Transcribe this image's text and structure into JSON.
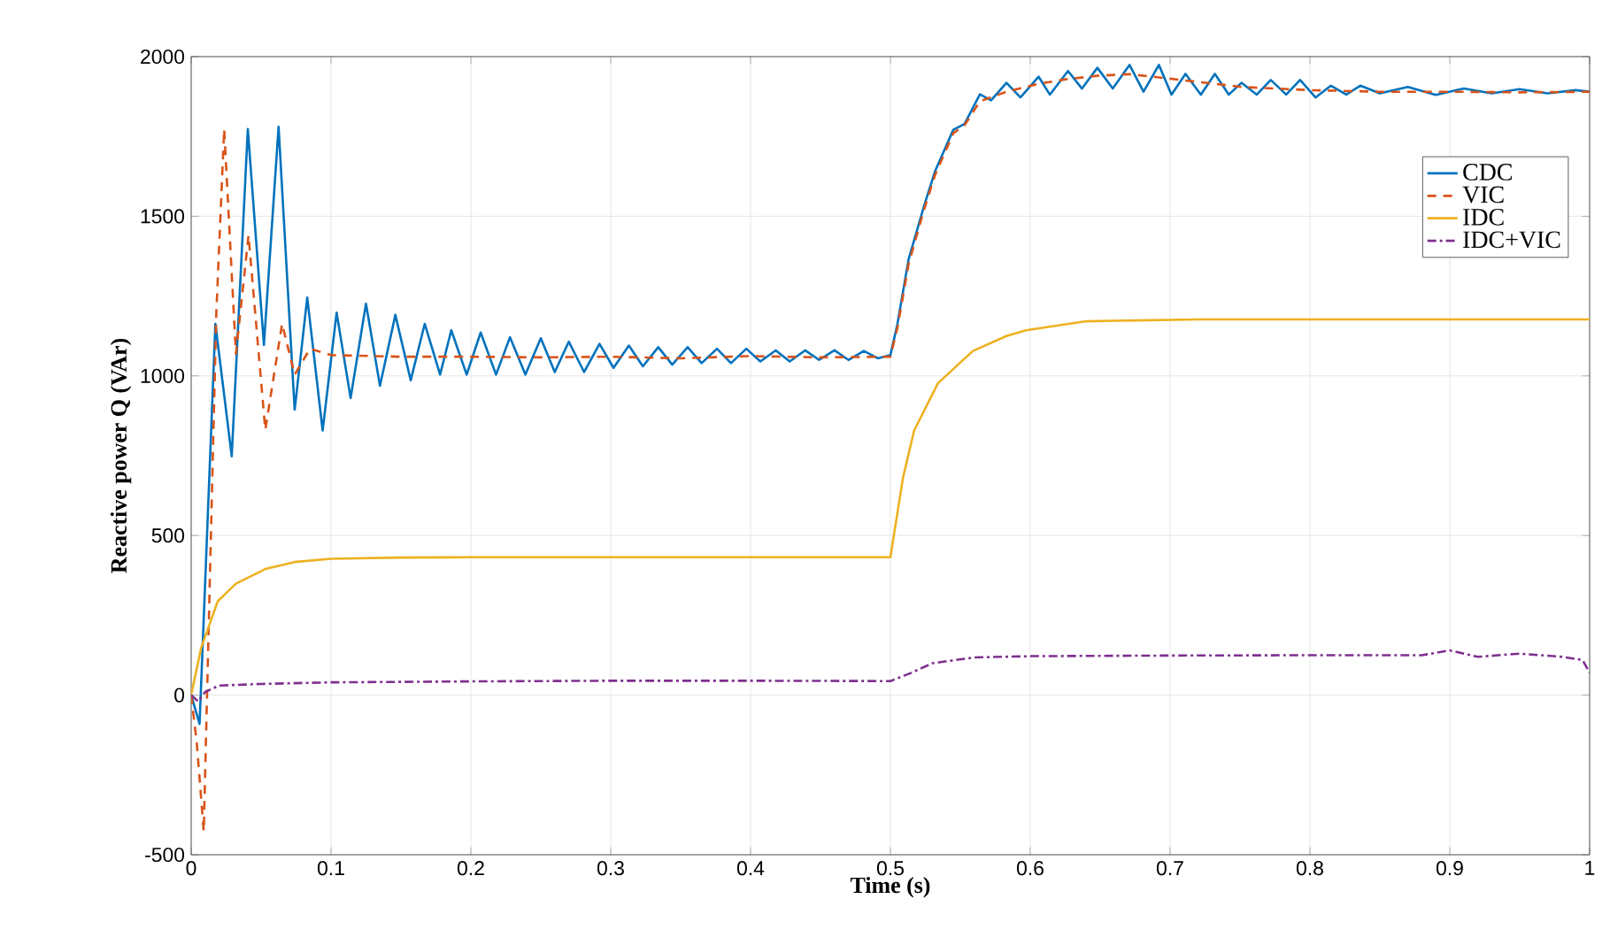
{
  "chart_data": {
    "type": "line",
    "xlabel": "Time (s)",
    "ylabel": "Reactive power Q (VAr)",
    "xlim": [
      0,
      1
    ],
    "ylim": [
      -500,
      2000
    ],
    "xticks": [
      0,
      0.1,
      0.2,
      0.3,
      0.4,
      0.5,
      0.6,
      0.7,
      0.8,
      0.9,
      1
    ],
    "yticks": [
      -500,
      0,
      500,
      1000,
      1500,
      2000
    ],
    "grid": true,
    "legend": "top right",
    "series": [
      {
        "name": "CDC",
        "color": "#0072bd",
        "line_style": "solid",
        "x": [
          0,
          0.006,
          0.0173,
          0.029,
          0.0405,
          0.052,
          0.0625,
          0.074,
          0.083,
          0.094,
          0.104,
          0.114,
          0.125,
          0.135,
          0.146,
          0.157,
          0.167,
          0.178,
          0.186,
          0.197,
          0.207,
          0.218,
          0.228,
          0.239,
          0.25,
          0.26,
          0.27,
          0.281,
          0.292,
          0.302,
          0.313,
          0.323,
          0.334,
          0.344,
          0.355,
          0.365,
          0.376,
          0.386,
          0.397,
          0.407,
          0.418,
          0.428,
          0.439,
          0.449,
          0.46,
          0.47,
          0.481,
          0.491,
          0.5,
          0.505,
          0.513,
          0.524,
          0.532,
          0.545,
          0.553,
          0.564,
          0.572,
          0.583,
          0.593,
          0.606,
          0.614,
          0.627,
          0.637,
          0.648,
          0.659,
          0.671,
          0.681,
          0.692,
          0.701,
          0.711,
          0.722,
          0.732,
          0.742,
          0.751,
          0.762,
          0.772,
          0.783,
          0.793,
          0.804,
          0.815,
          0.826,
          0.836,
          0.85,
          0.87,
          0.89,
          0.91,
          0.93,
          0.95,
          0.97,
          0.99,
          1.0
        ],
        "values": [
          0,
          -90,
          1163,
          748,
          1773,
          1097,
          1780,
          894,
          1245,
          829,
          1198,
          931,
          1226,
          969,
          1191,
          986,
          1163,
          1004,
          1143,
          1004,
          1136,
          1004,
          1121,
          1004,
          1118,
          1012,
          1107,
          1012,
          1100,
          1025,
          1095,
          1030,
          1090,
          1035,
          1090,
          1040,
          1085,
          1040,
          1085,
          1045,
          1080,
          1045,
          1080,
          1050,
          1080,
          1050,
          1078,
          1055,
          1065,
          1162,
          1365,
          1531,
          1642,
          1771,
          1789,
          1882,
          1863,
          1918,
          1872,
          1937,
          1881,
          1955,
          1900,
          1965,
          1900,
          1974,
          1890,
          1974,
          1881,
          1946,
          1881,
          1946,
          1881,
          1918,
          1881,
          1927,
          1881,
          1927,
          1872,
          1909,
          1881,
          1909,
          1885,
          1905,
          1880,
          1900,
          1885,
          1898,
          1885,
          1895,
          1890
        ]
      },
      {
        "name": "VIC",
        "color": "#d95319",
        "line_style": "dashed",
        "x": [
          0,
          0.004,
          0.009,
          0.013,
          0.018,
          0.0236,
          0.032,
          0.041,
          0.053,
          0.065,
          0.074,
          0.085,
          0.1,
          0.15,
          0.2,
          0.25,
          0.3,
          0.35,
          0.4,
          0.45,
          0.5,
          0.505,
          0.513,
          0.524,
          0.532,
          0.545,
          0.553,
          0.564,
          0.583,
          0.606,
          0.627,
          0.648,
          0.671,
          0.692,
          0.711,
          0.732,
          0.751,
          0.8,
          0.85,
          0.9,
          0.95,
          1.0
        ],
        "values": [
          0,
          -150,
          -427,
          300,
          1200,
          1773,
          1069,
          1440,
          831,
          1163,
          1004,
          1085,
          1065,
          1060,
          1060,
          1058,
          1060,
          1055,
          1062,
          1058,
          1060,
          1150,
          1350,
          1520,
          1630,
          1760,
          1785,
          1860,
          1890,
          1915,
          1930,
          1940,
          1945,
          1935,
          1925,
          1915,
          1905,
          1895,
          1890,
          1890,
          1888,
          1890
        ]
      },
      {
        "name": "IDC",
        "color": "#edb120",
        "line_style": "solid",
        "x": [
          0,
          0.007,
          0.019,
          0.032,
          0.053,
          0.074,
          0.1,
          0.15,
          0.2,
          0.3,
          0.4,
          0.5,
          0.509,
          0.517,
          0.534,
          0.559,
          0.583,
          0.597,
          0.64,
          0.72,
          0.8,
          0.9,
          1.0
        ],
        "values": [
          0,
          146,
          294,
          349,
          395,
          417,
          427,
          431,
          432,
          432,
          432,
          432,
          681,
          829,
          977,
          1078,
          1125,
          1143,
          1171,
          1177,
          1177,
          1177,
          1177
        ]
      },
      {
        "name": "IDC+VIC",
        "color": "#7e2f8e",
        "line_style": "dashdot",
        "x": [
          0,
          0.005,
          0.01,
          0.02,
          0.05,
          0.1,
          0.2,
          0.3,
          0.4,
          0.5,
          0.515,
          0.53,
          0.56,
          0.6,
          0.7,
          0.8,
          0.88,
          0.9,
          0.92,
          0.95,
          0.98,
          0.995,
          1.0
        ],
        "values": [
          0,
          -20,
          10,
          30,
          35,
          40,
          43,
          45,
          45,
          44,
          70,
          100,
          118,
          122,
          124,
          125,
          125,
          140,
          120,
          130,
          120,
          110,
          70
        ]
      }
    ]
  }
}
